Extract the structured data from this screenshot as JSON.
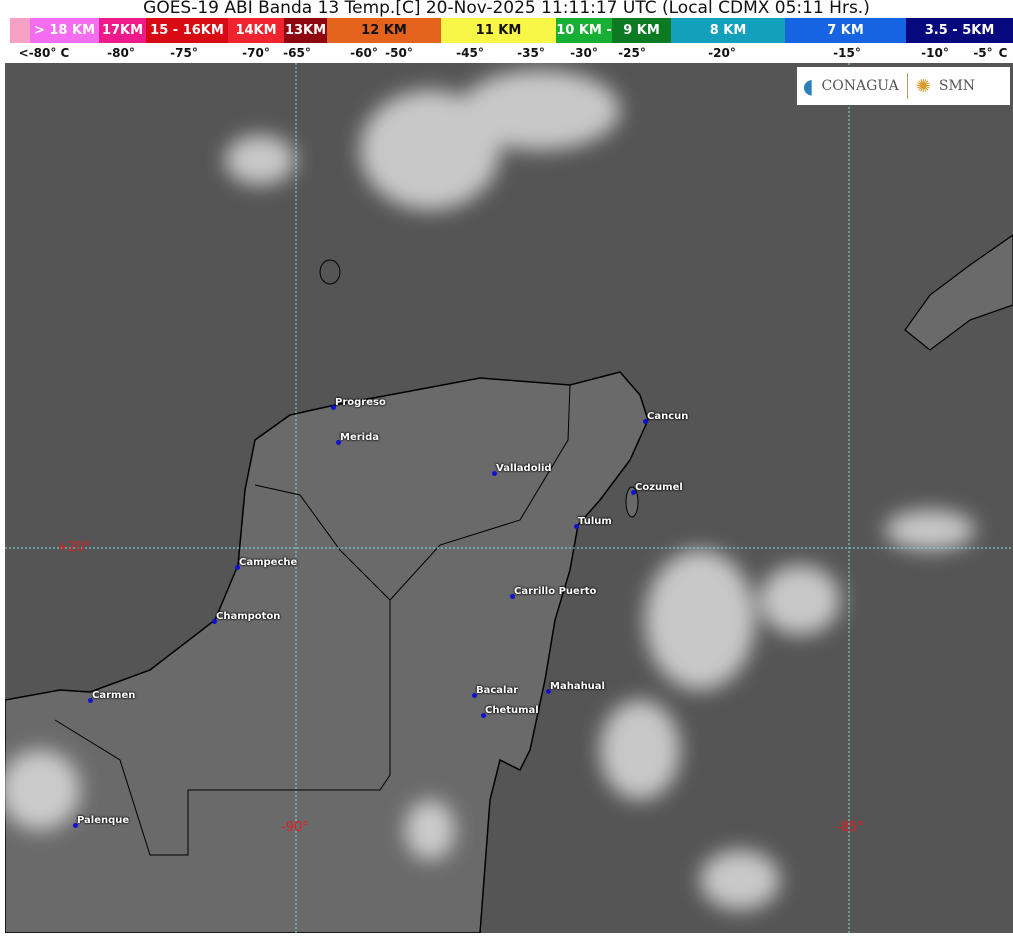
{
  "title": "GOES-19 ABI Banda 13 Temp.[C] 20-Nov-2025 11:11:17 UTC (Local CDMX  05:11 Hrs.)",
  "legend": {
    "segments": [
      {
        "label": "",
        "color": "#f7a1c4"
      },
      {
        "label": "> 18 KM",
        "color": "#f46df0"
      },
      {
        "label": "17KM",
        "color": "#ee1a8c"
      },
      {
        "label": "15 - 16KM",
        "color": "#d80a14"
      },
      {
        "label": "14KM",
        "color": "#f0242e"
      },
      {
        "label": "13KM",
        "color": "#8e0610"
      },
      {
        "label": "12 KM",
        "color": "#e3621c"
      },
      {
        "label": "11 KM",
        "color": "#f8f646"
      },
      {
        "label": "10 KM -",
        "color": "#18b034"
      },
      {
        "label": "9 KM",
        "color": "#0b7a22"
      },
      {
        "label": "8 KM",
        "color": "#12a0bc"
      },
      {
        "label": "7 KM",
        "color": "#1764e3"
      },
      {
        "label": "3.5 - 5KM",
        "color": "#07077e"
      }
    ],
    "ticks": [
      "<-80° C",
      "-80°",
      "-75°",
      "-70°",
      "-65°",
      "-60°",
      "-50°",
      "-45°",
      "-35°",
      "-30°",
      "-25°",
      "-20°",
      "-15°",
      "-10°",
      "-5°",
      "C"
    ]
  },
  "logos": {
    "conagua": "CONAGUA",
    "smn": "SMN"
  },
  "grid": {
    "lat": "+20°",
    "lon1": "-90°",
    "lon2": "-85°"
  },
  "cities": [
    "Progreso",
    "Merida",
    "Cancun",
    "Valladolid",
    "Cozumel",
    "Tulum",
    "Campeche",
    "Carrillo Puerto",
    "Champoton",
    "Carmen",
    "Bacalar",
    "Mahahual",
    "Chetumal",
    "Palenque"
  ]
}
